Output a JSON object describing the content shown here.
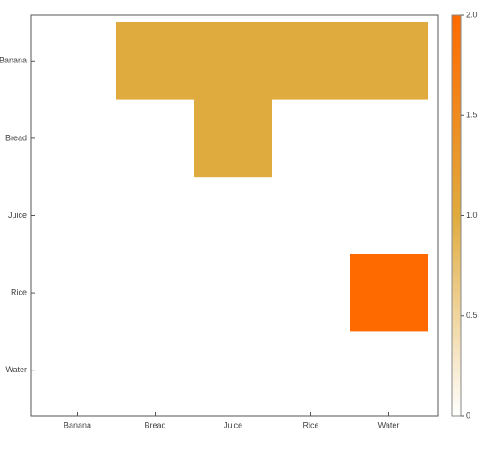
{
  "chart_data": {
    "type": "heatmap",
    "x_categories": [
      "Banana",
      "Bread",
      "Juice",
      "Rice",
      "Water"
    ],
    "y_categories": [
      "Banana",
      "Bread",
      "Juice",
      "Rice",
      "Water"
    ],
    "z": [
      [
        0,
        1,
        1,
        1,
        1
      ],
      [
        0,
        0,
        1,
        0,
        0
      ],
      [
        0,
        0,
        0,
        0,
        0
      ],
      [
        0,
        0,
        0,
        0,
        2
      ],
      [
        0,
        0,
        0,
        0,
        0
      ]
    ],
    "colorscale": [
      "#ffffff",
      "#e0ab3e",
      "#ff6a00"
    ],
    "zlim": [
      0,
      2
    ],
    "zticks": [
      0,
      0.5,
      {
        "value": 1,
        "label": "1.0"
      },
      1.5,
      {
        "value": 2,
        "label": "2.0"
      }
    ]
  }
}
